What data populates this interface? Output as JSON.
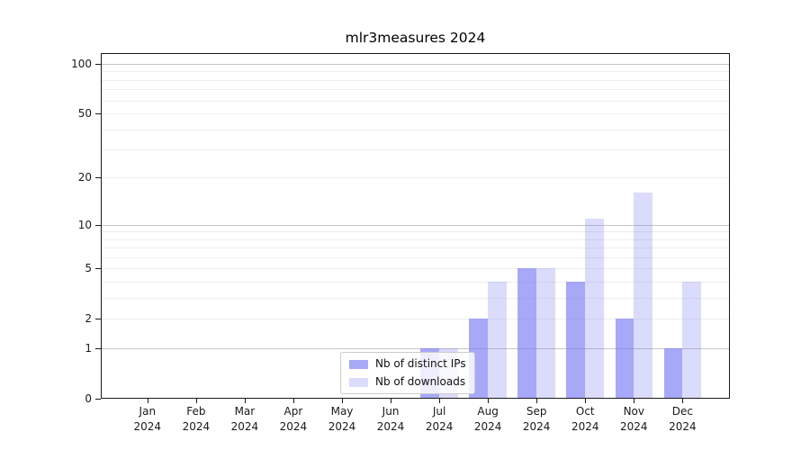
{
  "figure": {
    "title": "mlr3measures 2024",
    "background_color": "#ffffff"
  },
  "chart_data": {
    "type": "bar",
    "title": "mlr3measures 2024",
    "categories": [
      "Jan",
      "Feb",
      "Mar",
      "Apr",
      "May",
      "Jun",
      "Jul",
      "Aug",
      "Sep",
      "Oct",
      "Nov",
      "Dec"
    ],
    "category_year": "2024",
    "series": [
      {
        "name": "Nb of distinct IPs",
        "color": "rgba(122,122,245,0.65)",
        "values": [
          0,
          0,
          0,
          0,
          0,
          0,
          1,
          2,
          5,
          4,
          2,
          1
        ]
      },
      {
        "name": "Nb of downloads",
        "color": "rgba(122,122,245,0.27)",
        "values": [
          0,
          0,
          0,
          0,
          0,
          0,
          1,
          4,
          5,
          11,
          16,
          4
        ]
      }
    ],
    "xlabel": "",
    "ylabel": "",
    "y_scale": "log1p",
    "ylim": [
      0,
      115
    ],
    "y_ticks": [
      0,
      1,
      2,
      5,
      10,
      20,
      50,
      100
    ],
    "y_major_gridlines": [
      1,
      10,
      100
    ],
    "y_minor_gridlines": [
      2,
      3,
      4,
      5,
      6,
      7,
      8,
      9,
      20,
      30,
      40,
      50,
      60,
      70,
      80,
      90
    ],
    "grid": true,
    "legend_position": "lower center",
    "colors": {
      "major_gridline": "#c6c6c6",
      "minor_gridline": "#ededed",
      "axis_line": "#1a1a1a",
      "tick_text": "#1a1a1a",
      "title_text": "#000000"
    }
  }
}
